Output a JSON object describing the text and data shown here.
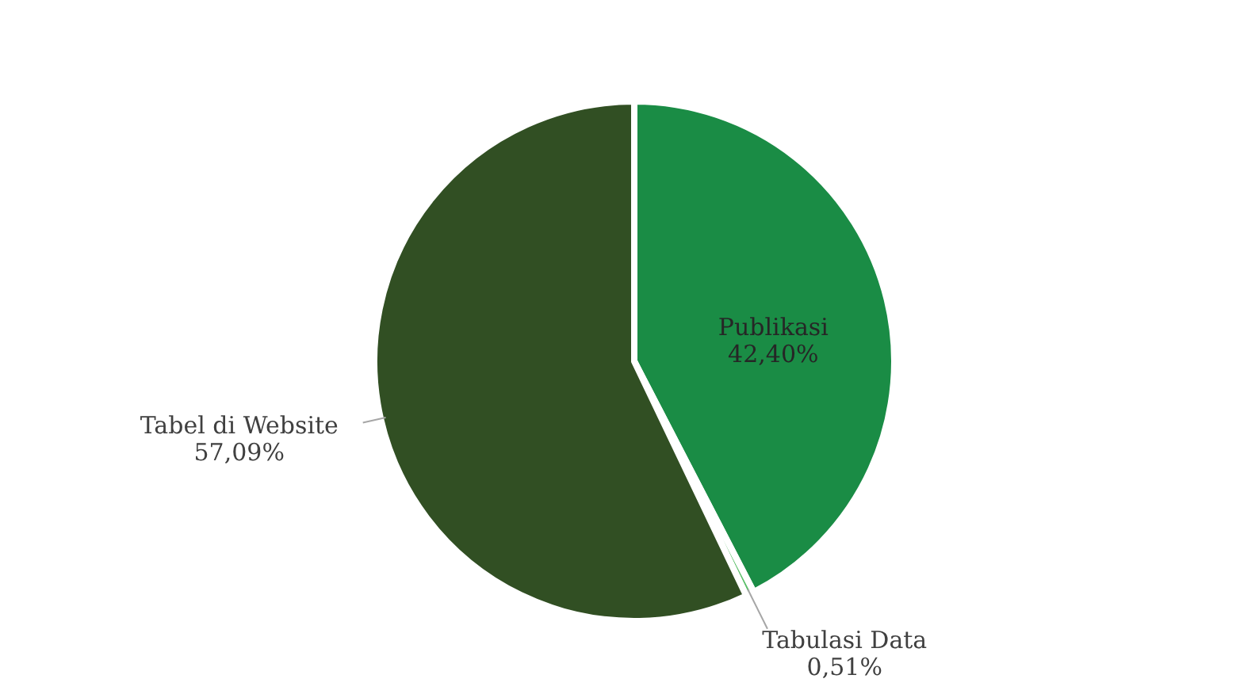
{
  "chart_data": {
    "type": "pie",
    "categories": [
      "Publikasi",
      "Tabulasi Data",
      "Tabel di Website"
    ],
    "values": [
      42.4,
      0.51,
      57.09
    ],
    "colors": [
      "#1a8c45",
      "#5cbf6a",
      "#314f23"
    ],
    "value_labels": [
      "42,40%",
      "0,51%",
      "57,09%"
    ]
  }
}
